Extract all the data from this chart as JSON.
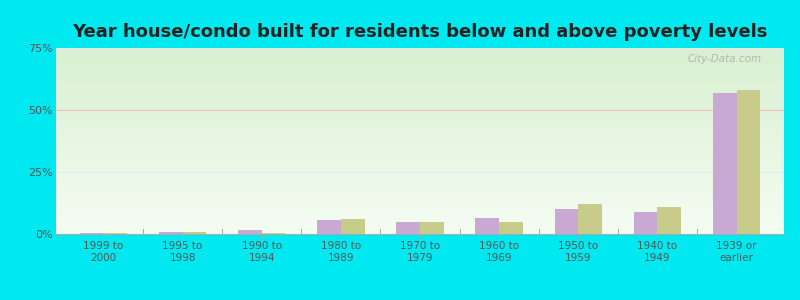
{
  "title": "Year house/condo built for residents below and above poverty levels",
  "categories": [
    "1999 to\n2000",
    "1995 to\n1998",
    "1990 to\n1994",
    "1980 to\n1989",
    "1970 to\n1979",
    "1960 to\n1969",
    "1950 to\n1959",
    "1940 to\n1949",
    "1939 or\nearlier"
  ],
  "below_poverty": [
    0.5,
    1.0,
    1.5,
    5.5,
    5.0,
    6.5,
    10.0,
    9.0,
    57.0
  ],
  "above_poverty": [
    0.3,
    0.8,
    0.5,
    6.0,
    5.0,
    5.0,
    12.0,
    11.0,
    58.0
  ],
  "bar_color_below": "#c9a8d4",
  "bar_color_above": "#c8cc8a",
  "bg_color_outer": "#00e8f0",
  "ylim": [
    0,
    75
  ],
  "yticks": [
    0,
    25,
    50,
    75
  ],
  "ytick_labels": [
    "0%",
    "25%",
    "50%",
    "75%"
  ],
  "title_fontsize": 13,
  "watermark": "City-Data.com",
  "grid_color_50": "#f0c0c8",
  "grid_color_25_75": "#e8e8f0"
}
